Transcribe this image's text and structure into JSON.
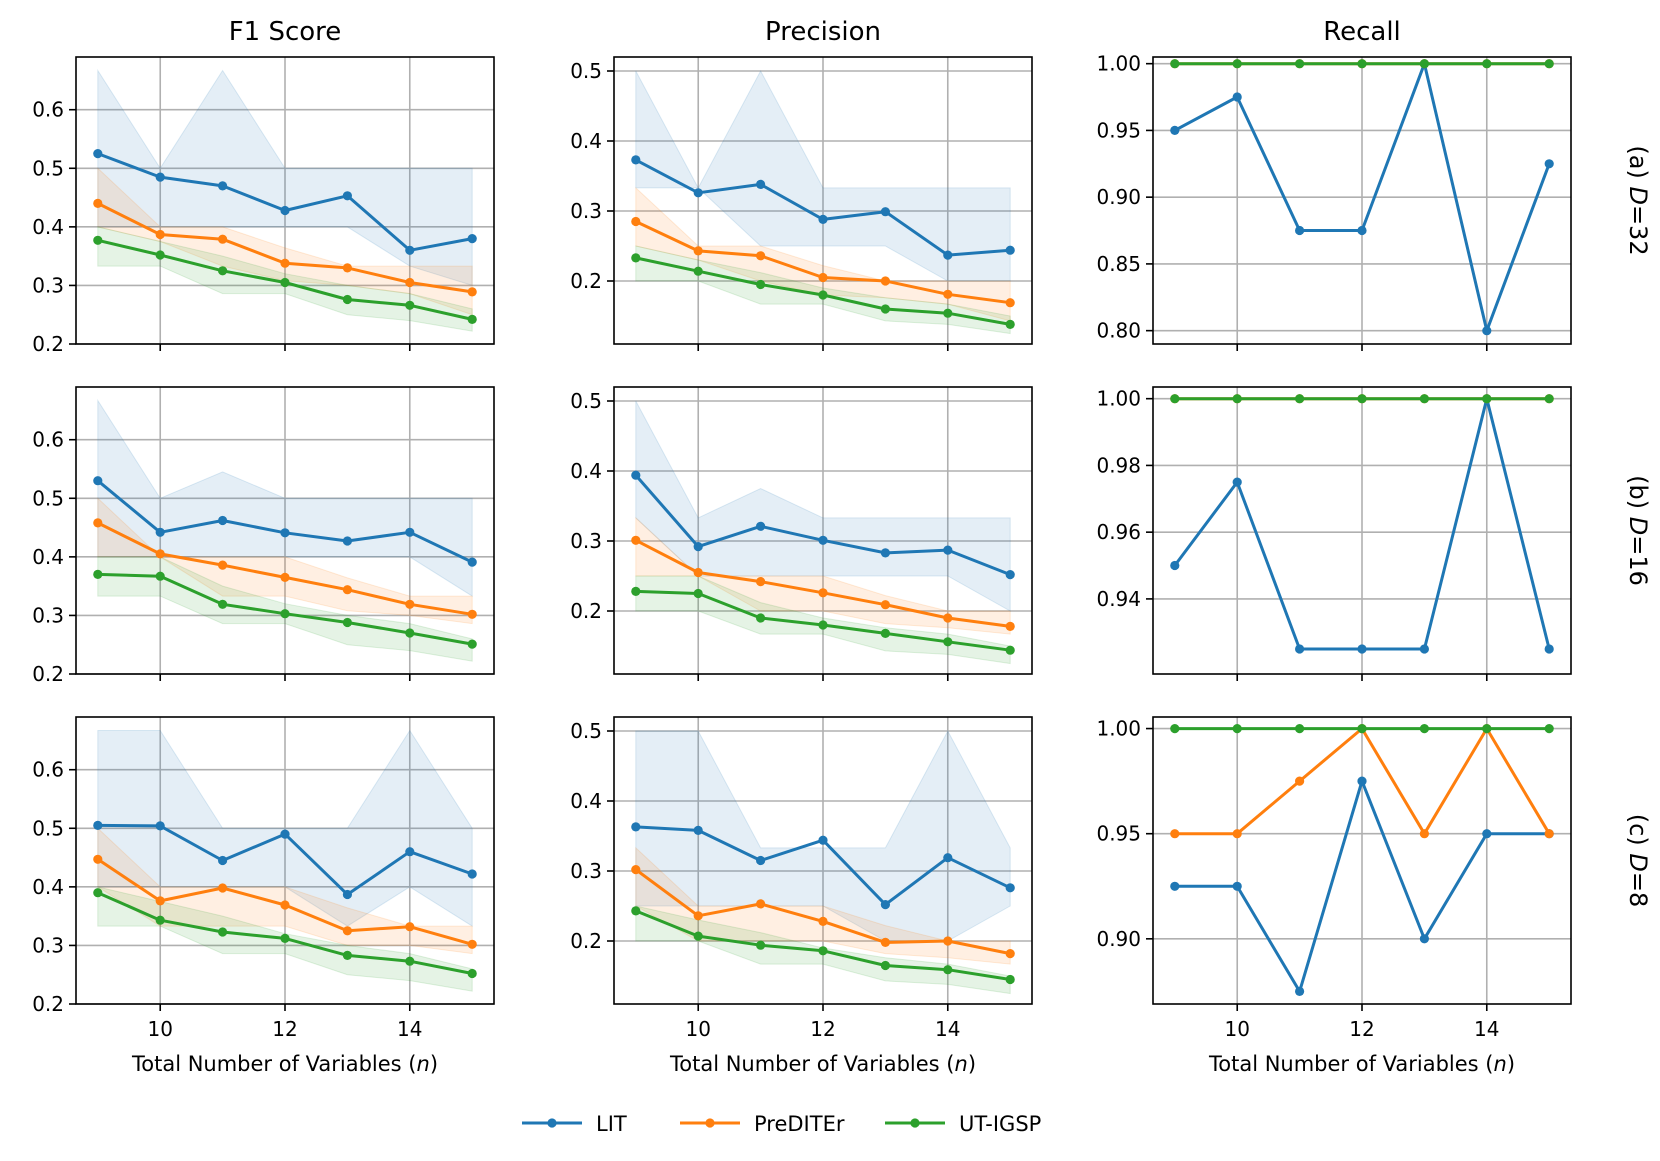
{
  "chart_data": {
    "type": "line",
    "layout": "3x3 grid",
    "columns": [
      {
        "title": "F1 Score",
        "ylim": [
          0.2,
          0.69
        ],
        "yticks": [
          0.2,
          0.3,
          0.4,
          0.5,
          0.6
        ]
      },
      {
        "title": "Precision",
        "ylim": [
          0.11,
          0.52
        ],
        "yticks": [
          0.2,
          0.3,
          0.4,
          0.5
        ]
      },
      {
        "title": "Recall",
        "ylim": null,
        "yticks": null
      }
    ],
    "rows": [
      {
        "label_prefix": "(a) ",
        "label_var": "D",
        "label_suffix": "=32"
      },
      {
        "label_prefix": "(b) ",
        "label_var": "D",
        "label_suffix": "=16"
      },
      {
        "label_prefix": "(c) ",
        "label_var": "D",
        "label_suffix": "=8"
      }
    ],
    "x": [
      9,
      10,
      11,
      12,
      13,
      14,
      15
    ],
    "xlim": [
      8.65,
      15.35
    ],
    "xticks": [
      10,
      12,
      14
    ],
    "xlabel": {
      "text": "Total Number of Variables (",
      "var": "n",
      "close": ")"
    },
    "grid": true,
    "legend": {
      "position": "bottom-center"
    },
    "series": [
      {
        "name": "LIT",
        "color": "#1f77b4"
      },
      {
        "name": "PreDITEr",
        "color": "#ff7f0e"
      },
      {
        "name": "UT-IGSP",
        "color": "#2ca02c"
      }
    ],
    "panels": [
      [
        {
          "values": [
            [
              0.525,
              0.485,
              0.47,
              0.428,
              0.453,
              0.36,
              0.38
            ],
            [
              0.44,
              0.387,
              0.379,
              0.338,
              0.33,
              0.305,
              0.289
            ],
            [
              0.377,
              0.352,
              0.325,
              0.305,
              0.276,
              0.266,
              0.242
            ]
          ],
          "bands": [
            [
              [
                0.4,
                0.667
              ],
              [
                0.4,
                0.5
              ],
              [
                0.4,
                0.667
              ],
              [
                0.4,
                0.5
              ],
              [
                0.4,
                0.5
              ],
              [
                0.333,
                0.5
              ],
              [
                0.3,
                0.5
              ]
            ],
            [
              [
                0.4,
                0.5
              ],
              [
                0.375,
                0.4
              ],
              [
                0.333,
                0.4
              ],
              [
                0.308,
                0.364
              ],
              [
                0.3,
                0.333
              ],
              [
                0.286,
                0.333
              ],
              [
                0.25,
                0.333
              ]
            ],
            [
              [
                0.333,
                0.4
              ],
              [
                0.333,
                0.375
              ],
              [
                0.286,
                0.35
              ],
              [
                0.286,
                0.32
              ],
              [
                0.25,
                0.3
              ],
              [
                0.24,
                0.286
              ],
              [
                0.222,
                0.26
              ]
            ]
          ]
        },
        {
          "values": [
            [
              0.373,
              0.326,
              0.338,
              0.288,
              0.299,
              0.237,
              0.244
            ],
            [
              0.285,
              0.243,
              0.236,
              0.205,
              0.2,
              0.181,
              0.169
            ],
            [
              0.233,
              0.214,
              0.195,
              0.18,
              0.16,
              0.154,
              0.138
            ]
          ],
          "bands": [
            [
              [
                0.333,
                0.5
              ],
              [
                0.333,
                0.333
              ],
              [
                0.25,
                0.5
              ],
              [
                0.25,
                0.333
              ],
              [
                0.25,
                0.333
              ],
              [
                0.2,
                0.333
              ],
              [
                0.2,
                0.333
              ]
            ],
            [
              [
                0.25,
                0.333
              ],
              [
                0.23,
                0.25
              ],
              [
                0.2,
                0.25
              ],
              [
                0.18,
                0.222
              ],
              [
                0.176,
                0.2
              ],
              [
                0.167,
                0.2
              ],
              [
                0.143,
                0.2
              ]
            ],
            [
              [
                0.2,
                0.25
              ],
              [
                0.2,
                0.23
              ],
              [
                0.167,
                0.212
              ],
              [
                0.167,
                0.19
              ],
              [
                0.143,
                0.176
              ],
              [
                0.138,
                0.167
              ],
              [
                0.125,
                0.15
              ]
            ]
          ]
        },
        {
          "ylim": [
            0.79,
            1.005
          ],
          "yticks": [
            0.8,
            0.85,
            0.9,
            0.95,
            1.0
          ],
          "tick_decimals": 2,
          "values": [
            [
              0.95,
              0.975,
              0.875,
              0.875,
              1.0,
              0.8,
              0.925
            ],
            [
              1,
              1,
              1,
              1,
              1,
              1,
              1
            ],
            [
              1,
              1,
              1,
              1,
              1,
              1,
              1
            ]
          ]
        }
      ],
      [
        {
          "values": [
            [
              0.53,
              0.442,
              0.462,
              0.441,
              0.427,
              0.442,
              0.391
            ],
            [
              0.458,
              0.405,
              0.386,
              0.365,
              0.344,
              0.319,
              0.302
            ],
            [
              0.37,
              0.367,
              0.319,
              0.303,
              0.288,
              0.27,
              0.251
            ]
          ],
          "bands": [
            [
              [
                0.4,
                0.667
              ],
              [
                0.4,
                0.5
              ],
              [
                0.4,
                0.545
              ],
              [
                0.4,
                0.5
              ],
              [
                0.4,
                0.5
              ],
              [
                0.4,
                0.5
              ],
              [
                0.333,
                0.5
              ]
            ],
            [
              [
                0.4,
                0.5
              ],
              [
                0.4,
                0.4
              ],
              [
                0.333,
                0.4
              ],
              [
                0.333,
                0.4
              ],
              [
                0.308,
                0.364
              ],
              [
                0.3,
                0.333
              ],
              [
                0.286,
                0.333
              ]
            ],
            [
              [
                0.333,
                0.4
              ],
              [
                0.333,
                0.4
              ],
              [
                0.286,
                0.35
              ],
              [
                0.286,
                0.32
              ],
              [
                0.25,
                0.3
              ],
              [
                0.24,
                0.286
              ],
              [
                0.222,
                0.26
              ]
            ]
          ]
        },
        {
          "values": [
            [
              0.394,
              0.292,
              0.321,
              0.301,
              0.283,
              0.287,
              0.252
            ],
            [
              0.301,
              0.255,
              0.242,
              0.226,
              0.209,
              0.19,
              0.178
            ],
            [
              0.228,
              0.225,
              0.19,
              0.18,
              0.168,
              0.156,
              0.144
            ]
          ],
          "bands": [
            [
              [
                0.333,
                0.5
              ],
              [
                0.25,
                0.333
              ],
              [
                0.25,
                0.375
              ],
              [
                0.25,
                0.333
              ],
              [
                0.25,
                0.333
              ],
              [
                0.25,
                0.333
              ],
              [
                0.2,
                0.333
              ]
            ],
            [
              [
                0.25,
                0.333
              ],
              [
                0.25,
                0.25
              ],
              [
                0.2,
                0.25
              ],
              [
                0.2,
                0.25
              ],
              [
                0.182,
                0.222
              ],
              [
                0.176,
                0.2
              ],
              [
                0.167,
                0.2
              ]
            ],
            [
              [
                0.2,
                0.25
              ],
              [
                0.2,
                0.25
              ],
              [
                0.167,
                0.212
              ],
              [
                0.167,
                0.19
              ],
              [
                0.143,
                0.176
              ],
              [
                0.138,
                0.167
              ],
              [
                0.125,
                0.15
              ]
            ]
          ]
        },
        {
          "ylim": [
            0.9175,
            1.0035
          ],
          "yticks": [
            0.94,
            0.96,
            0.98,
            1.0
          ],
          "tick_decimals": 2,
          "values": [
            [
              0.95,
              0.975,
              0.925,
              0.925,
              0.925,
              1.0,
              0.925
            ],
            [
              1,
              1,
              1,
              1,
              1,
              1,
              1
            ],
            [
              1,
              1,
              1,
              1,
              1,
              1,
              1
            ]
          ]
        }
      ],
      [
        {
          "values": [
            [
              0.505,
              0.504,
              0.445,
              0.49,
              0.387,
              0.46,
              0.422
            ],
            [
              0.447,
              0.376,
              0.398,
              0.369,
              0.325,
              0.332,
              0.302
            ],
            [
              0.39,
              0.343,
              0.323,
              0.312,
              0.283,
              0.273,
              0.252
            ]
          ],
          "bands": [
            [
              [
                0.4,
                0.667
              ],
              [
                0.4,
                0.667
              ],
              [
                0.4,
                0.5
              ],
              [
                0.4,
                0.5
              ],
              [
                0.333,
                0.5
              ],
              [
                0.4,
                0.667
              ],
              [
                0.333,
                0.5
              ]
            ],
            [
              [
                0.4,
                0.5
              ],
              [
                0.333,
                0.4
              ],
              [
                0.333,
                0.4
              ],
              [
                0.333,
                0.4
              ],
              [
                0.3,
                0.364
              ],
              [
                0.3,
                0.333
              ],
              [
                0.286,
                0.333
              ]
            ],
            [
              [
                0.333,
                0.4
              ],
              [
                0.333,
                0.375
              ],
              [
                0.286,
                0.35
              ],
              [
                0.286,
                0.32
              ],
              [
                0.25,
                0.3
              ],
              [
                0.24,
                0.286
              ],
              [
                0.222,
                0.26
              ]
            ]
          ]
        },
        {
          "values": [
            [
              0.363,
              0.358,
              0.315,
              0.344,
              0.252,
              0.319,
              0.276
            ],
            [
              0.302,
              0.236,
              0.253,
              0.228,
              0.198,
              0.2,
              0.182
            ],
            [
              0.243,
              0.207,
              0.194,
              0.186,
              0.165,
              0.159,
              0.145
            ]
          ],
          "bands": [
            [
              [
                0.25,
                0.5
              ],
              [
                0.25,
                0.5
              ],
              [
                0.25,
                0.333
              ],
              [
                0.25,
                0.333
              ],
              [
                0.2,
                0.333
              ],
              [
                0.2,
                0.5
              ],
              [
                0.25,
                0.333
              ]
            ],
            [
              [
                0.25,
                0.333
              ],
              [
                0.2,
                0.25
              ],
              [
                0.2,
                0.25
              ],
              [
                0.2,
                0.25
              ],
              [
                0.182,
                0.222
              ],
              [
                0.176,
                0.2
              ],
              [
                0.167,
                0.2
              ]
            ],
            [
              [
                0.2,
                0.25
              ],
              [
                0.2,
                0.23
              ],
              [
                0.167,
                0.212
              ],
              [
                0.167,
                0.19
              ],
              [
                0.143,
                0.176
              ],
              [
                0.138,
                0.167
              ],
              [
                0.125,
                0.15
              ]
            ]
          ]
        },
        {
          "ylim": [
            0.869,
            1.0055
          ],
          "yticks": [
            0.9,
            0.95,
            1.0
          ],
          "tick_decimals": 2,
          "values": [
            [
              0.925,
              0.925,
              0.875,
              0.975,
              0.9,
              0.95,
              0.95
            ],
            [
              0.95,
              0.95,
              0.975,
              1.0,
              0.95,
              1.0,
              0.95
            ],
            [
              1,
              1,
              1,
              1,
              1,
              1,
              1
            ]
          ]
        }
      ]
    ]
  }
}
